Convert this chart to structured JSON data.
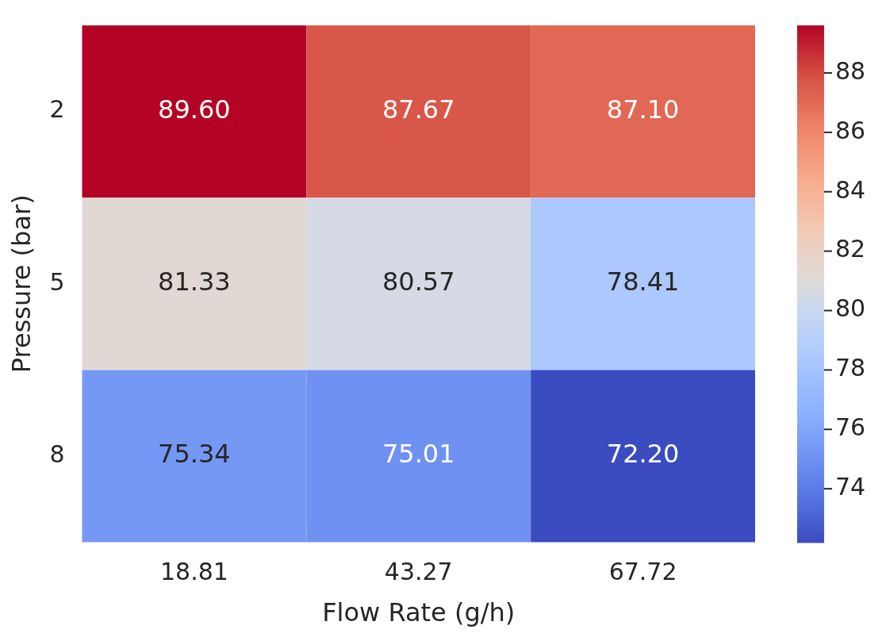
{
  "chart_data": {
    "type": "heatmap",
    "xlabel": "Flow Rate (g/h)",
    "ylabel": "Pressure (bar)",
    "categories": [
      "18.81",
      "43.27",
      "67.72"
    ],
    "y_categories": [
      "2",
      "5",
      "8"
    ],
    "cells": [
      [
        89.6,
        87.67,
        87.1
      ],
      [
        81.33,
        80.57,
        78.41
      ],
      [
        75.34,
        75.01,
        72.2
      ]
    ],
    "cell_labels": [
      [
        "89.60",
        "87.67",
        "87.10"
      ],
      [
        "81.33",
        "80.57",
        "78.41"
      ],
      [
        "75.34",
        "75.01",
        "72.20"
      ]
    ],
    "clim": [
      72.2,
      89.6
    ],
    "cticks": [
      74,
      76,
      78,
      80,
      82,
      84,
      86,
      88
    ]
  }
}
